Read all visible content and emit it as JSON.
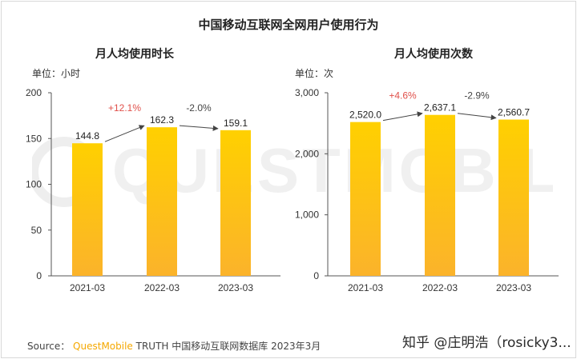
{
  "page": {
    "main_title": "中国移动互联网全网用户使用行为",
    "source_prefix": "Source：",
    "source_brand": "QuestMobile",
    "source_suffix": "TRUTH 中国移动互联网数据库 2023年3月",
    "watermark_text": "QUESTMOBILE",
    "zhihu_mark": "知乎 @庄明浩（rosicky3..."
  },
  "colors": {
    "bar_top": "#ffd000",
    "bar_bottom": "#fbb32b",
    "growth_positive": "#e0504a",
    "growth_negative": "#444444",
    "axis": "#555555",
    "watermark": "#eeeeee"
  },
  "chart_data": [
    {
      "type": "bar",
      "title": "月人均使用时长",
      "unit_label": "单位：小时",
      "categories": [
        "2021-03",
        "2022-03",
        "2023-03"
      ],
      "values": [
        144.8,
        162.3,
        159.1
      ],
      "value_labels": [
        "144.8",
        "162.3",
        "159.1"
      ],
      "ylim": [
        0,
        200
      ],
      "yticks": [
        0,
        50,
        100,
        150,
        200
      ],
      "ytick_labels": [
        "0",
        "50",
        "100",
        "150",
        "200"
      ],
      "growth": [
        {
          "label": "+12.1%",
          "from": 0,
          "to": 1,
          "direction": "positive"
        },
        {
          "label": "-2.0%",
          "from": 1,
          "to": 2,
          "direction": "negative"
        }
      ]
    },
    {
      "type": "bar",
      "title": "月人均使用次数",
      "unit_label": "单位：次",
      "categories": [
        "2021-03",
        "2022-03",
        "2023-03"
      ],
      "values": [
        2520.0,
        2637.1,
        2560.7
      ],
      "value_labels": [
        "2,520.0",
        "2,637.1",
        "2,560.7"
      ],
      "ylim": [
        0,
        3000
      ],
      "yticks": [
        0,
        1000,
        2000,
        3000
      ],
      "ytick_labels": [
        "0",
        "1,000",
        "2,000",
        "3,000"
      ],
      "growth": [
        {
          "label": "+4.6%",
          "from": 0,
          "to": 1,
          "direction": "positive"
        },
        {
          "label": "-2.9%",
          "from": 1,
          "to": 2,
          "direction": "negative"
        }
      ]
    }
  ]
}
